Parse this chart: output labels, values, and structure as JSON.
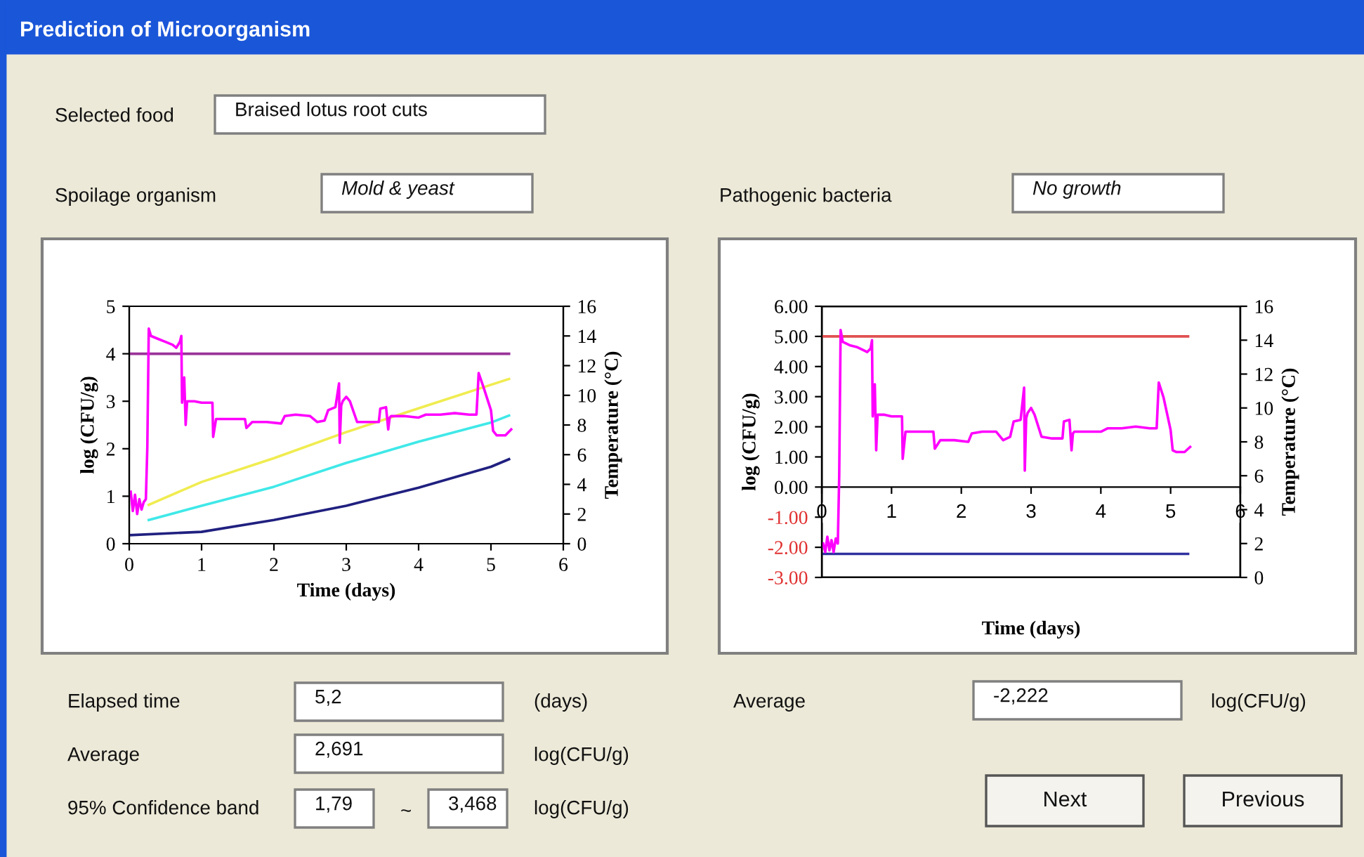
{
  "chart_data": [
    {
      "type": "other",
      "title": "Prediction of Microorganism",
      "annotations": [
        "Selected food",
        "Braised lotus root cuts",
        "Spoilage organism",
        "Mold & yeast",
        "Pathogenic bacteria",
        "No growth",
        "Elapsed time",
        "5,2",
        "(days)",
        "Average",
        "2,691",
        "log(CFU/g)",
        "95% Confidence band",
        "1,79",
        "~",
        "3,468",
        "log(CFU/g)",
        "Average",
        "-2,222",
        "log(CFU/g)",
        "Next",
        "Previous"
      ]
    },
    {
      "type": "line",
      "xlabel": "Time (days)",
      "ylabel": "log (CFU/g)",
      "y2label": "Temperature (°C)",
      "xlim": [
        0,
        6
      ],
      "xticks": [
        0,
        1,
        2,
        3,
        4,
        5,
        6
      ],
      "ylim": [
        0,
        5
      ],
      "yticks": [
        0,
        1,
        2,
        3,
        4,
        5
      ],
      "y2lim": [
        0,
        16
      ],
      "y2ticks": [
        0,
        2,
        4,
        6,
        8,
        10,
        12,
        14,
        16
      ],
      "grid": false,
      "legend": false,
      "series": [
        {
          "color": "#ff00ff",
          "axis": "y2",
          "x": [
            0.02,
            0.05,
            0.08,
            0.11,
            0.14,
            0.17,
            0.2,
            0.23,
            0.25,
            0.27,
            0.3,
            0.4,
            0.5,
            0.6,
            0.65,
            0.7,
            0.72,
            0.73,
            0.76,
            0.78,
            0.8,
            0.9,
            1.0,
            1.1,
            1.15,
            1.16,
            1.2,
            1.4,
            1.6,
            1.62,
            1.7,
            1.9,
            2.1,
            2.15,
            2.3,
            2.5,
            2.6,
            2.7,
            2.75,
            2.85,
            2.9,
            2.91,
            2.93,
            2.95,
            3.0,
            3.05,
            3.15,
            3.3,
            3.45,
            3.47,
            3.55,
            3.58,
            3.6,
            3.62,
            3.8,
            4.0,
            4.1,
            4.3,
            4.5,
            4.7,
            4.8,
            4.83,
            4.9,
            5.0,
            5.03,
            5.08,
            5.2,
            5.28
          ],
          "values": [
            3.5,
            2.2,
            3.3,
            2.0,
            3.0,
            2.3,
            2.8,
            3.0,
            6.5,
            14.5,
            14.0,
            13.8,
            13.6,
            13.4,
            13.2,
            13.6,
            14.0,
            9.5,
            11.2,
            8.0,
            9.6,
            9.6,
            9.5,
            9.5,
            9.5,
            7.2,
            8.4,
            8.4,
            8.4,
            7.8,
            8.2,
            8.2,
            8.1,
            8.6,
            8.7,
            8.6,
            8.2,
            8.3,
            9.0,
            9.2,
            10.8,
            6.8,
            9.3,
            9.6,
            9.9,
            9.6,
            8.2,
            8.2,
            8.2,
            9.1,
            9.2,
            7.7,
            8.5,
            8.6,
            8.6,
            8.5,
            8.7,
            8.7,
            8.8,
            8.7,
            8.7,
            11.5,
            10.5,
            9.0,
            7.6,
            7.3,
            7.3,
            7.7
          ]
        },
        {
          "color": "#993399",
          "x": [
            0,
            5.25
          ],
          "values": [
            4,
            4
          ]
        },
        {
          "color": "#f0ec50",
          "x": [
            0.27,
            1,
            2,
            3,
            4,
            5.25
          ],
          "values": [
            0.82,
            1.3,
            1.8,
            2.35,
            2.85,
            3.47
          ]
        },
        {
          "color": "#40e8e8",
          "x": [
            0.27,
            1,
            2,
            3,
            4,
            5,
            5.25
          ],
          "values": [
            0.5,
            0.8,
            1.2,
            1.7,
            2.15,
            2.55,
            2.7
          ]
        },
        {
          "color": "#202080",
          "x": [
            0,
            1,
            2,
            3,
            4,
            5,
            5.25
          ],
          "values": [
            0.18,
            0.25,
            0.5,
            0.8,
            1.18,
            1.62,
            1.78
          ]
        }
      ]
    },
    {
      "type": "line",
      "xlabel": "Time (days)",
      "ylabel": "log (CFU/g)",
      "y2label": "Temperature (°C)",
      "xlim": [
        0,
        6
      ],
      "xticks": [
        0,
        1,
        2,
        3,
        4,
        5,
        6
      ],
      "ylim": [
        -3,
        6
      ],
      "yticks": [
        {
          "value": -3,
          "label": "-3.00"
        },
        {
          "value": -2,
          "label": "-2.00"
        },
        {
          "value": -1,
          "label": "-1.00"
        },
        {
          "value": 0,
          "label": "0.00"
        },
        {
          "value": 1,
          "label": "1.00"
        },
        {
          "value": 2,
          "label": "2.00"
        },
        {
          "value": 3,
          "label": "3.00"
        },
        {
          "value": 4,
          "label": "4.00"
        },
        {
          "value": 5,
          "label": "5.00"
        },
        {
          "value": 6,
          "label": "6.00"
        }
      ],
      "y2lim": [
        0,
        16
      ],
      "y2ticks": [
        0,
        2,
        4,
        6,
        8,
        10,
        12,
        14,
        16
      ],
      "grid": false,
      "legend": false,
      "series": [
        {
          "color": "#ff00ff",
          "axis": "y2",
          "x": [
            0.02,
            0.05,
            0.08,
            0.11,
            0.14,
            0.17,
            0.2,
            0.23,
            0.25,
            0.27,
            0.3,
            0.4,
            0.5,
            0.6,
            0.65,
            0.7,
            0.72,
            0.73,
            0.76,
            0.78,
            0.8,
            0.9,
            1.0,
            1.1,
            1.15,
            1.16,
            1.2,
            1.4,
            1.6,
            1.62,
            1.7,
            1.9,
            2.1,
            2.15,
            2.3,
            2.5,
            2.6,
            2.7,
            2.75,
            2.85,
            2.9,
            2.91,
            2.93,
            2.95,
            3.0,
            3.05,
            3.15,
            3.3,
            3.45,
            3.47,
            3.55,
            3.58,
            3.6,
            3.62,
            3.8,
            4.0,
            4.1,
            4.3,
            4.5,
            4.7,
            4.8,
            4.83,
            4.9,
            5.0,
            5.03,
            5.08,
            5.2,
            5.28
          ],
          "values": [
            2.0,
            1.5,
            2.4,
            1.6,
            2.2,
            1.5,
            2.3,
            2.0,
            6.0,
            14.6,
            13.9,
            13.7,
            13.6,
            13.4,
            13.3,
            13.5,
            14.0,
            9.5,
            11.4,
            7.5,
            9.6,
            9.6,
            9.5,
            9.5,
            9.5,
            7.0,
            8.6,
            8.6,
            8.6,
            7.6,
            8.1,
            8.1,
            8.0,
            8.5,
            8.6,
            8.6,
            8.1,
            8.3,
            9.2,
            9.3,
            11.2,
            6.3,
            9.4,
            9.7,
            10.0,
            9.6,
            8.3,
            8.2,
            8.2,
            9.2,
            9.3,
            7.5,
            8.5,
            8.6,
            8.6,
            8.6,
            8.8,
            8.8,
            8.9,
            8.8,
            8.8,
            11.5,
            10.6,
            8.7,
            7.5,
            7.4,
            7.4,
            7.7
          ]
        },
        {
          "color": "#e05050",
          "x": [
            0,
            5.25
          ],
          "values": [
            5,
            5
          ]
        },
        {
          "color": "#3030a0",
          "x": [
            0,
            5.25
          ],
          "values": [
            -2.22,
            -2.22
          ]
        }
      ]
    }
  ]
}
